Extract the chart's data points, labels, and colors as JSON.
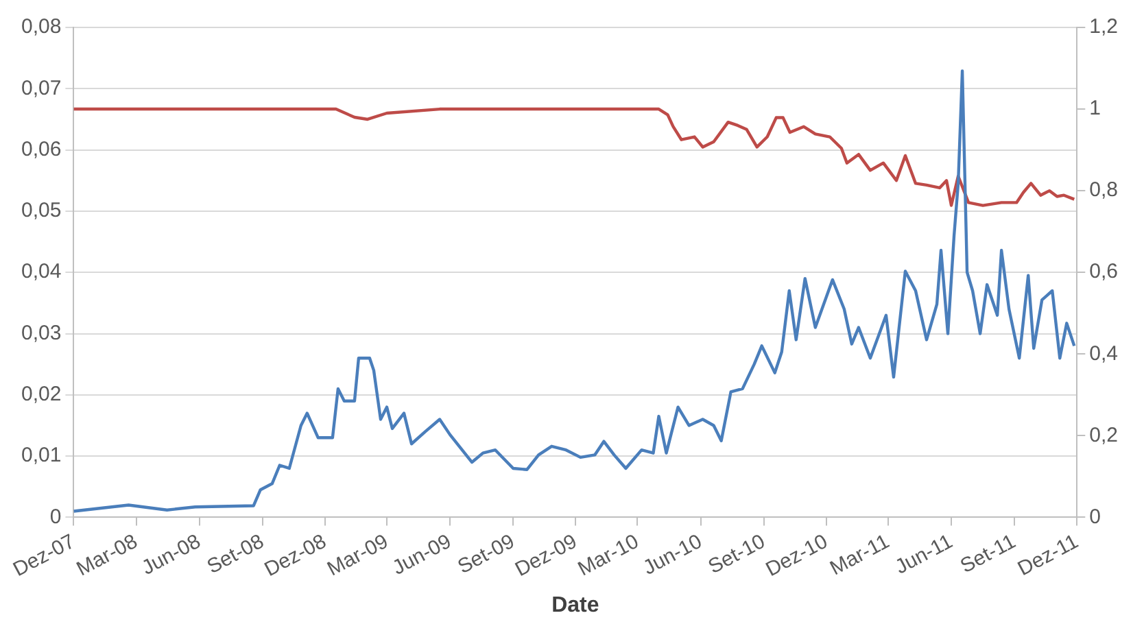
{
  "chart_data": {
    "type": "line",
    "xlabel": "Date",
    "xlim": [
      "2007-12-01",
      "2011-12-01"
    ],
    "xticks": [
      {
        "value": "2007-12-01",
        "label": "Dez-07"
      },
      {
        "value": "2008-03-01",
        "label": "Mar-08"
      },
      {
        "value": "2008-06-01",
        "label": "Jun-08"
      },
      {
        "value": "2008-09-01",
        "label": "Set-08"
      },
      {
        "value": "2008-12-01",
        "label": "Dez-08"
      },
      {
        "value": "2009-03-01",
        "label": "Mar-09"
      },
      {
        "value": "2009-06-01",
        "label": "Jun-09"
      },
      {
        "value": "2009-09-01",
        "label": "Set-09"
      },
      {
        "value": "2009-12-01",
        "label": "Dez-09"
      },
      {
        "value": "2010-03-01",
        "label": "Mar-10"
      },
      {
        "value": "2010-06-01",
        "label": "Jun-10"
      },
      {
        "value": "2010-09-01",
        "label": "Set-10"
      },
      {
        "value": "2010-12-01",
        "label": "Dez-10"
      },
      {
        "value": "2011-03-01",
        "label": "Mar-11"
      },
      {
        "value": "2011-06-01",
        "label": "Jun-11"
      },
      {
        "value": "2011-09-01",
        "label": "Set-11"
      },
      {
        "value": "2011-12-01",
        "label": "Dez-11"
      }
    ],
    "ylim": [
      0,
      0.08
    ],
    "yticks": [
      0,
      {
        "value": 0.01,
        "label": "0,01"
      },
      {
        "value": 0.02,
        "label": "0,02"
      },
      {
        "value": 0.03,
        "label": "0,03"
      },
      {
        "value": 0.04,
        "label": "0,04"
      },
      {
        "value": 0.05,
        "label": "0,05"
      },
      {
        "value": 0.06,
        "label": "0,06"
      },
      {
        "value": 0.07,
        "label": "0,07"
      },
      {
        "value": 0.08,
        "label": "0,08"
      }
    ],
    "y2lim": [
      0,
      1.2
    ],
    "y2ticks": [
      0,
      {
        "value": 0.2,
        "label": "0,2"
      },
      {
        "value": 0.4,
        "label": "0,4"
      },
      {
        "value": 0.6,
        "label": "0,6"
      },
      {
        "value": 0.8,
        "label": "0,8"
      },
      1,
      {
        "value": 1.2,
        "label": "1,2"
      }
    ],
    "grid": "y",
    "marker": "none",
    "series": [
      {
        "color": "#4a7ebb",
        "x": [
          "2007-12-01",
          "2008-02-19",
          "2008-04-15",
          "2008-05-26",
          "2008-08-19",
          "2008-08-29",
          "2008-09-15",
          "2008-09-26",
          "2008-10-10",
          "2008-10-27",
          "2008-11-05",
          "2008-11-21",
          "2008-12-12",
          "2008-12-20",
          "2008-12-29",
          "2009-01-13",
          "2009-01-19",
          "2009-02-04",
          "2009-02-10",
          "2009-02-20",
          "2009-03-01",
          "2009-03-09",
          "2009-03-26",
          "2009-04-06",
          "2009-04-26",
          "2009-05-17",
          "2009-06-01",
          "2009-07-03",
          "2009-07-19",
          "2009-08-06",
          "2009-09-01",
          "2009-09-21",
          "2009-10-08",
          "2009-10-27",
          "2009-11-17",
          "2009-12-08",
          "2009-12-29",
          "2010-01-11",
          "2010-01-26",
          "2010-02-12",
          "2010-03-07",
          "2010-03-24",
          "2010-04-01",
          "2010-04-12",
          "2010-04-29",
          "2010-05-15",
          "2010-06-04",
          "2010-06-20",
          "2010-07-01",
          "2010-07-15",
          "2010-08-01",
          "2010-08-18",
          "2010-08-29",
          "2010-09-17",
          "2010-09-27",
          "2010-10-08",
          "2010-10-18",
          "2010-10-31",
          "2010-11-15",
          "2010-12-10",
          "2010-12-27",
          "2011-01-07",
          "2011-01-17",
          "2011-02-03",
          "2011-02-26",
          "2011-03-09",
          "2011-03-26",
          "2011-04-10",
          "2011-04-26",
          "2011-05-11",
          "2011-05-17",
          "2011-05-27",
          "2011-06-05",
          "2011-06-11",
          "2011-06-17",
          "2011-06-24",
          "2011-07-02",
          "2011-07-13",
          "2011-07-23",
          "2011-08-07",
          "2011-08-13",
          "2011-08-24",
          "2011-09-08",
          "2011-09-21",
          "2011-09-29",
          "2011-10-11",
          "2011-10-26",
          "2011-11-06",
          "2011-11-16",
          "2011-11-27"
        ],
        "values": [
          0.001,
          0.002,
          0.0012,
          0.0017,
          0.0019,
          0.0045,
          0.0055,
          0.0085,
          0.008,
          0.015,
          0.017,
          0.013,
          0.013,
          0.021,
          0.019,
          0.019,
          0.026,
          0.026,
          0.024,
          0.016,
          0.018,
          0.0145,
          0.017,
          0.012,
          0.014,
          0.016,
          0.0135,
          0.009,
          0.0105,
          0.011,
          0.008,
          0.0078,
          0.0102,
          0.0116,
          0.011,
          0.0098,
          0.0102,
          0.0124,
          0.0102,
          0.008,
          0.011,
          0.0105,
          0.0165,
          0.0105,
          0.018,
          0.015,
          0.016,
          0.015,
          0.0125,
          0.0205,
          0.021,
          0.025,
          0.028,
          0.0236,
          0.027,
          0.037,
          0.029,
          0.039,
          0.031,
          0.0388,
          0.034,
          0.0283,
          0.031,
          0.026,
          0.033,
          0.0229,
          0.0402,
          0.037,
          0.029,
          0.0348,
          0.0436,
          0.03,
          0.046,
          0.0545,
          0.0729,
          0.04,
          0.037,
          0.03,
          0.038,
          0.033,
          0.0436,
          0.034,
          0.026,
          0.0395,
          0.0276,
          0.0355,
          0.037,
          0.026,
          0.0317,
          0.028
        ]
      },
      {
        "color": "#be4b48",
        "axis": "y2",
        "x": [
          "2007-12-01",
          "2008-12-17",
          "2009-01-13",
          "2009-02-01",
          "2009-03-01",
          "2009-05-17",
          "2010-04-01",
          "2010-04-14",
          "2010-04-22",
          "2010-05-04",
          "2010-05-23",
          "2010-06-04",
          "2010-06-20",
          "2010-07-11",
          "2010-07-25",
          "2010-08-07",
          "2010-08-22",
          "2010-09-06",
          "2010-09-19",
          "2010-09-29",
          "2010-10-09",
          "2010-10-29",
          "2010-11-15",
          "2010-12-06",
          "2010-12-23",
          "2010-12-31",
          "2011-01-17",
          "2011-02-03",
          "2011-02-22",
          "2011-03-13",
          "2011-03-26",
          "2011-04-10",
          "2011-04-26",
          "2011-05-15",
          "2011-05-25",
          "2011-06-01",
          "2011-06-11",
          "2011-06-26",
          "2011-07-17",
          "2011-08-13",
          "2011-09-04",
          "2011-09-14",
          "2011-09-25",
          "2011-10-09",
          "2011-10-22",
          "2011-11-02",
          "2011-11-12",
          "2011-11-27"
        ],
        "values": [
          1,
          1,
          0.98,
          0.975,
          0.99,
          1,
          1,
          0.986,
          0.957,
          0.925,
          0.932,
          0.907,
          0.92,
          0.968,
          0.96,
          0.95,
          0.907,
          0.932,
          0.979,
          0.979,
          0.943,
          0.957,
          0.939,
          0.932,
          0.904,
          0.868,
          0.889,
          0.85,
          0.868,
          0.825,
          0.886,
          0.818,
          0.814,
          0.807,
          0.825,
          0.764,
          0.836,
          0.771,
          0.764,
          0.771,
          0.771,
          0.796,
          0.818,
          0.789,
          0.8,
          0.786,
          0.789,
          0.779
        ]
      }
    ]
  }
}
